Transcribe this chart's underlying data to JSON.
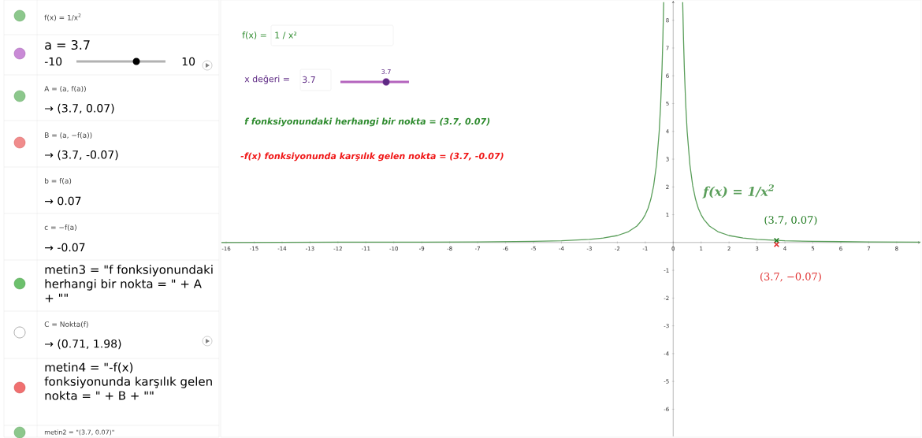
{
  "chart_data": {
    "type": "line",
    "xlim": [
      -16.17,
      8.85
    ],
    "ylim": [
      -6.98,
      8.7
    ],
    "xticks": [
      -16,
      -15,
      -14,
      -13,
      -12,
      -11,
      -10,
      -9,
      -8,
      -7,
      -6,
      -5,
      -4,
      -3,
      -2,
      -1,
      0,
      1,
      2,
      3,
      4,
      5,
      6,
      7,
      8
    ],
    "yticks": [
      -6,
      -5,
      -4,
      -3,
      -2,
      -1,
      1,
      2,
      3,
      4,
      5,
      6,
      7,
      8
    ],
    "series": [
      {
        "name": "f(x) = 1/x$^{2}$",
        "color": "#5a9e5a",
        "marker": "none",
        "x": [
          -16.17,
          -12,
          -9,
          -7,
          -5,
          -4,
          -3,
          -2.5,
          -2,
          -1.6,
          -1.3,
          -1.1,
          -1,
          -0.9,
          -0.8,
          -0.7,
          -0.6,
          -0.5,
          -0.45,
          -0.4,
          -0.37,
          -0.34,
          0,
          0.34,
          0.37,
          0.4,
          0.45,
          0.5,
          0.6,
          0.7,
          0.8,
          0.9,
          1,
          1.1,
          1.3,
          1.6,
          2,
          2.5,
          3,
          4,
          5,
          6,
          7,
          8.85
        ],
        "values": [
          0,
          0.01,
          0.01,
          0.02,
          0.04,
          0.06,
          0.11,
          0.16,
          0.25,
          0.39,
          0.59,
          0.83,
          1,
          1.23,
          1.56,
          2.04,
          2.78,
          4,
          4.94,
          6.25,
          7.3,
          8.65,
          null,
          8.65,
          7.3,
          6.25,
          4.94,
          4,
          2.78,
          2.04,
          1.56,
          1.23,
          1,
          0.83,
          0.59,
          0.39,
          0.25,
          0.16,
          0.11,
          0.06,
          0.04,
          0.03,
          0.02,
          0.01
        ]
      },
      {
        "type": "scatter",
        "color": "#1f7a1f",
        "marker": "cross",
        "x": [
          3.7
        ],
        "values": [
          0.07
        ],
        "value_labels": [
          "(3.7, 0.07)"
        ]
      },
      {
        "type": "scatter",
        "color": "#e03030",
        "marker": "cross",
        "x": [
          3.7
        ],
        "values": [
          -0.07
        ],
        "value_labels": [
          "(3.7, −0.07)"
        ]
      }
    ],
    "annotations": [
      "f(x) =",
      "1 / x²",
      "x değeri =",
      "3.7",
      "3.7",
      "f fonksiyonundaki herhangi bir nokta = (3.7, 0.07)",
      "-f(x) fonksiyonunda karşılık gelen nokta = (3.7, -0.07)",
      "f(x) = 1/x$^{2}$",
      "a = 3.7",
      "-10",
      "10",
      "A = (a, f(a))",
      "→ (3.7, 0.07)",
      "B = (a, −f(a))",
      "→ (3.7, -0.07)",
      "b = f(a)",
      "→ 0.07",
      "c = −f(a)",
      "→ -0.07",
      "metin3 = \"f fonksiyonundaki herhangi bir nokta = \" + A + \"\"",
      "C = Nokta(f)",
      "→ (0.71, 1.98)",
      "metin4 = \"-f(x) fonksiyonunda karşılık gelen nokta = \" + B + \"\"",
      "metin2 = \"(3.7, 0.07)\""
    ]
  }
}
